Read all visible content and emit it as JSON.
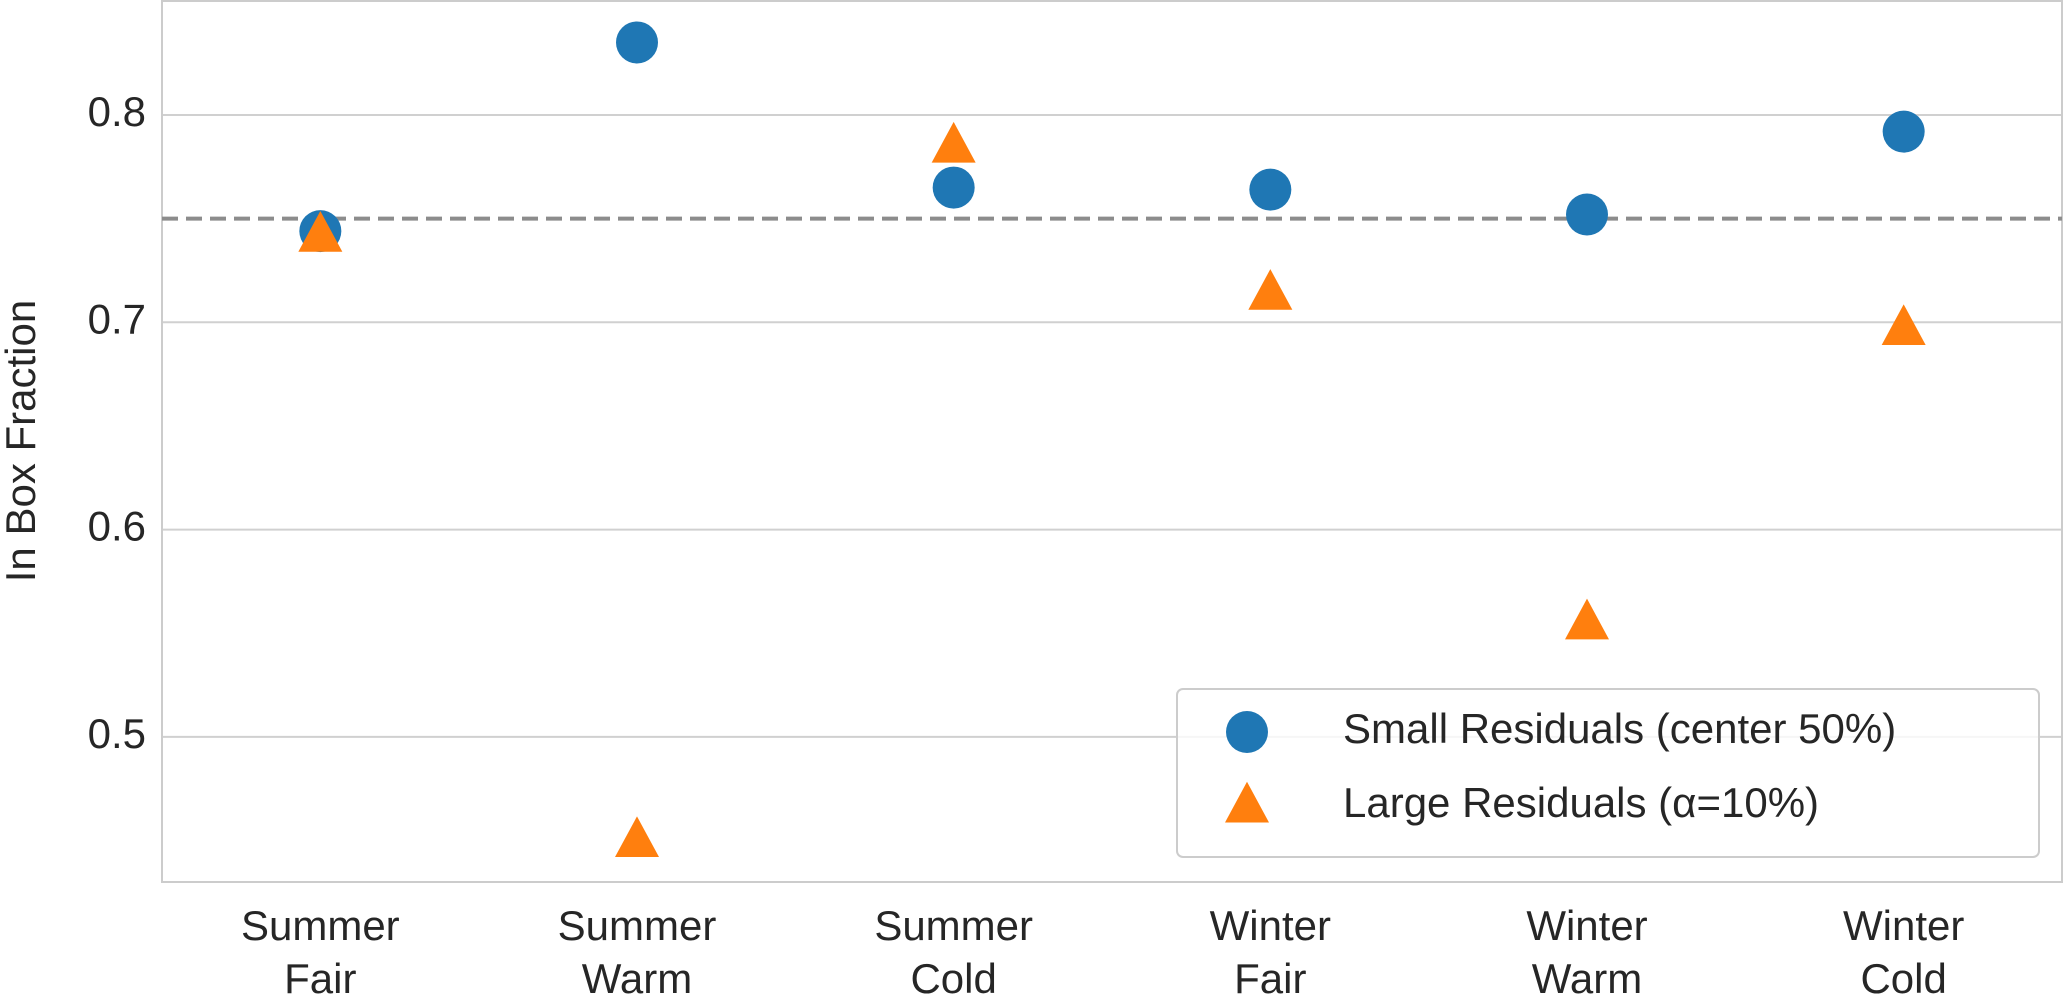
{
  "chart_data": {
    "type": "scatter",
    "y_label": "In Box Fraction",
    "categories": [
      "Summer\nFair",
      "Summer\nWarm",
      "Summer\nCold",
      "Winter\nFair",
      "Winter\nWarm",
      "Winter\nCold"
    ],
    "series": [
      {
        "name": "Small Residuals (center 50%)",
        "color": "#1f77b4",
        "marker": "circle",
        "values": [
          0.744,
          0.835,
          0.765,
          0.764,
          0.752,
          0.792
        ]
      },
      {
        "name": "Large Residuals (α=10%)",
        "color": "#ff7f0e",
        "marker": "triangle",
        "values": [
          0.742,
          0.45,
          0.785,
          0.714,
          0.555,
          0.697
        ]
      }
    ],
    "reference_line": 0.75,
    "ylim": [
      0.43,
      0.855
    ],
    "yticks": [
      0.5,
      0.6,
      0.7,
      0.8
    ],
    "grid": true,
    "legend": "lower right"
  }
}
